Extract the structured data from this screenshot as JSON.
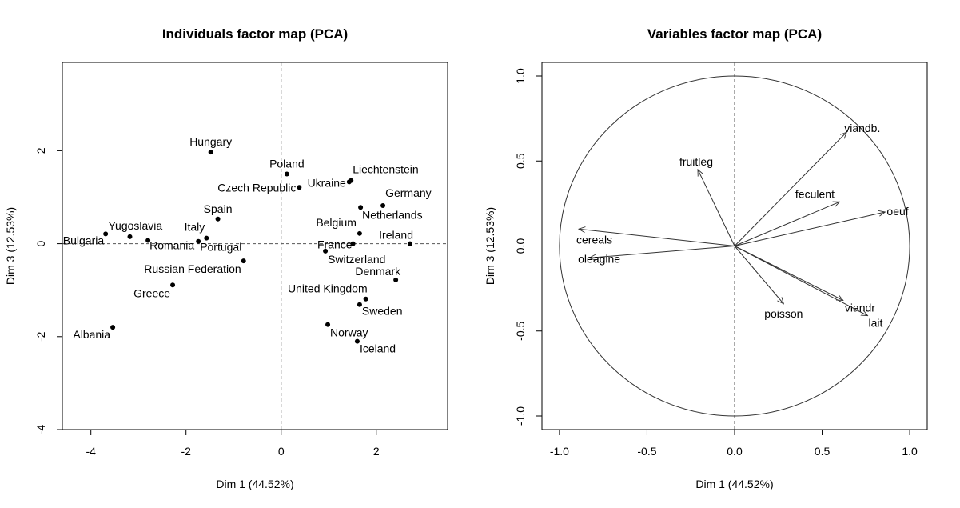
{
  "chart_data": [
    {
      "type": "scatter",
      "title": "Individuals factor map (PCA)",
      "xlabel": "Dim 1 (44.52%)",
      "ylabel": "Dim 3 (12.53%)",
      "xlim": [
        -4.6,
        3.5
      ],
      "ylim": [
        -4.0,
        3.9
      ],
      "xticks": [
        -4,
        -2,
        0,
        2
      ],
      "xtick_labels": [
        "-4",
        "-2",
        "0",
        "2"
      ],
      "yticks": [
        -4,
        -2,
        0,
        2
      ],
      "ytick_labels": [
        "-4",
        "-2",
        "0",
        "2"
      ],
      "reference_lines": {
        "x": 0,
        "y": 0,
        "style": "dashed"
      },
      "points": [
        {
          "label": "Hungary",
          "x": -1.48,
          "y": 1.97
        },
        {
          "label": "Poland",
          "x": 0.12,
          "y": 1.5
        },
        {
          "label": "Czech Republic",
          "x": 0.38,
          "y": 1.21
        },
        {
          "label": "Ukraine",
          "x": 1.43,
          "y": 1.33
        },
        {
          "label": "Liechtenstein",
          "x": 1.47,
          "y": 1.36
        },
        {
          "label": "Germany",
          "x": 2.14,
          "y": 0.82
        },
        {
          "label": "Netherlands",
          "x": 1.67,
          "y": 0.78
        },
        {
          "label": "Belgium",
          "x": 1.65,
          "y": 0.22
        },
        {
          "label": "Ireland",
          "x": 2.71,
          "y": 0.0
        },
        {
          "label": "France",
          "x": 1.51,
          "y": 0.0
        },
        {
          "label": "Switzerland",
          "x": 0.93,
          "y": -0.16
        },
        {
          "label": "Denmark",
          "x": 2.41,
          "y": -0.78
        },
        {
          "label": "United Kingdom",
          "x": 1.78,
          "y": -1.19
        },
        {
          "label": "Sweden",
          "x": 1.65,
          "y": -1.31
        },
        {
          "label": "Norway",
          "x": 0.98,
          "y": -1.74
        },
        {
          "label": "Iceland",
          "x": 1.6,
          "y": -2.1
        },
        {
          "label": "Spain",
          "x": -1.33,
          "y": 0.53
        },
        {
          "label": "Italy",
          "x": -1.57,
          "y": 0.12
        },
        {
          "label": "Portugal",
          "x": -1.74,
          "y": 0.05
        },
        {
          "label": "Romania",
          "x": -2.8,
          "y": 0.07
        },
        {
          "label": "Yugoslavia",
          "x": -3.18,
          "y": 0.15
        },
        {
          "label": "Bulgaria",
          "x": -3.69,
          "y": 0.21
        },
        {
          "label": "Russian Federation",
          "x": -0.79,
          "y": -0.37
        },
        {
          "label": "Greece",
          "x": -2.28,
          "y": -0.89
        },
        {
          "label": "Albania",
          "x": -3.54,
          "y": -1.8
        }
      ]
    },
    {
      "type": "vector",
      "title": "Variables factor map (PCA)",
      "xlabel": "Dim 1 (44.52%)",
      "ylabel": "Dim 3 (12.53%)",
      "xlim": [
        -1.1,
        1.1
      ],
      "ylim": [
        -1.08,
        1.08
      ],
      "xticks": [
        -1.0,
        -0.5,
        0.0,
        0.5,
        1.0
      ],
      "xtick_labels": [
        "-1.0",
        "-0.5",
        "0.0",
        "0.5",
        "1.0"
      ],
      "yticks": [
        -1.0,
        -0.5,
        0.0,
        0.5,
        1.0
      ],
      "ytick_labels": [
        "-1.0",
        "-0.5",
        "0.0",
        "0.5",
        "1.0"
      ],
      "unit_circle": true,
      "reference_lines": {
        "x": 0,
        "y": 0,
        "style": "dashed"
      },
      "vectors": [
        {
          "label": "viandb.",
          "x": 0.64,
          "y": 0.67
        },
        {
          "label": "fruitleg",
          "x": -0.21,
          "y": 0.45
        },
        {
          "label": "feculent",
          "x": 0.6,
          "y": 0.26
        },
        {
          "label": "oeuf",
          "x": 0.86,
          "y": 0.2
        },
        {
          "label": "cereals",
          "x": -0.89,
          "y": 0.1
        },
        {
          "label": "oleagine",
          "x": -0.83,
          "y": -0.07
        },
        {
          "label": "poisson",
          "x": 0.28,
          "y": -0.34
        },
        {
          "label": "viandr",
          "x": 0.62,
          "y": -0.32
        },
        {
          "label": "lait",
          "x": 0.76,
          "y": -0.41
        }
      ]
    }
  ]
}
